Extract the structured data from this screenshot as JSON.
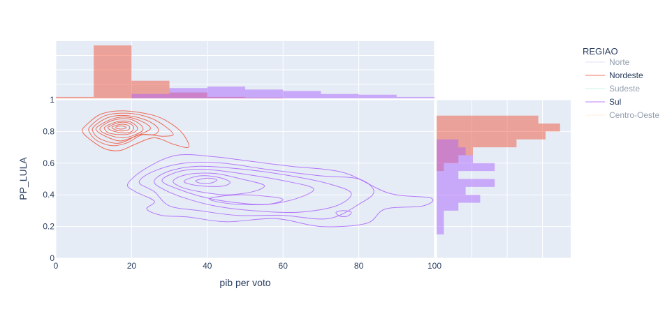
{
  "chart_data": {
    "type": "contour",
    "xlabel": "pib per voto",
    "ylabel": "PP_LULA",
    "xlim": [
      0,
      100
    ],
    "ylim": [
      0,
      1
    ],
    "x_ticks": [
      "0",
      "20",
      "40",
      "60",
      "80",
      "100"
    ],
    "y_ticks": [
      "0",
      "0.2",
      "0.4",
      "0.6",
      "0.8",
      "1"
    ],
    "grid": true,
    "legend_title": "REGIAO",
    "legend_position": "right",
    "legend": [
      {
        "name": "Norte",
        "color": "#636efa",
        "visible": false
      },
      {
        "name": "Nordeste",
        "color": "#EF553B",
        "visible": true
      },
      {
        "name": "Sudeste",
        "color": "#00cc96",
        "visible": false
      },
      {
        "name": "Sul",
        "color": "#ab63fa",
        "visible": true
      },
      {
        "name": "Centro-Oeste",
        "color": "#FFA15A",
        "visible": false
      }
    ],
    "colors": {
      "nordeste": "#EF553B",
      "sul": "#ab63fa",
      "plot_bg": "#e5ecf6",
      "text": "#2a3f5f"
    },
    "top_histogram": {
      "bin_width": 10,
      "series": [
        {
          "name": "Nordeste",
          "bins": [
            0,
            10,
            20,
            30,
            40,
            50
          ],
          "values": [
            1,
            36,
            12,
            4,
            1,
            0.5
          ]
        },
        {
          "name": "Sul",
          "bins": [
            20,
            30,
            40,
            50,
            60,
            70,
            80,
            90
          ],
          "values": [
            3,
            7,
            8,
            6,
            5,
            3,
            2.5,
            1
          ]
        }
      ]
    },
    "right_histogram": {
      "bin_width": 0.05,
      "series": [
        {
          "name": "Nordeste",
          "bins": [
            0.55,
            0.6,
            0.65,
            0.7,
            0.75,
            0.8,
            0.85
          ],
          "values": [
            1,
            3,
            5,
            11,
            15,
            17,
            14
          ]
        },
        {
          "name": "Sul",
          "bins": [
            0.15,
            0.2,
            0.25,
            0.3,
            0.35,
            0.4,
            0.45,
            0.5,
            0.55,
            0.6,
            0.65,
            0.7
          ],
          "values": [
            1,
            1,
            1,
            3,
            6,
            4,
            8,
            3,
            8,
            5,
            4,
            3
          ]
        }
      ]
    },
    "contours": {
      "Nordeste": [
        [
          [
            8,
            0.84
          ],
          [
            12,
            0.91
          ],
          [
            18,
            0.93
          ],
          [
            26,
            0.9
          ],
          [
            31,
            0.84
          ],
          [
            34,
            0.77
          ],
          [
            35,
            0.7
          ],
          [
            31,
            0.72
          ],
          [
            26,
            0.76
          ],
          [
            21,
            0.72
          ],
          [
            17,
            0.68
          ],
          [
            13,
            0.69
          ],
          [
            9,
            0.75
          ],
          [
            7,
            0.8
          ]
        ],
        [
          [
            9,
            0.83
          ],
          [
            13,
            0.9
          ],
          [
            19,
            0.915
          ],
          [
            25,
            0.885
          ],
          [
            29,
            0.83
          ],
          [
            31,
            0.78
          ],
          [
            28,
            0.77
          ],
          [
            23,
            0.78
          ],
          [
            19,
            0.73
          ],
          [
            15,
            0.71
          ],
          [
            11,
            0.74
          ],
          [
            9,
            0.79
          ]
        ],
        [
          [
            10,
            0.83
          ],
          [
            14,
            0.89
          ],
          [
            19,
            0.9
          ],
          [
            24,
            0.87
          ],
          [
            27,
            0.82
          ],
          [
            26,
            0.78
          ],
          [
            22,
            0.78
          ],
          [
            19,
            0.745
          ],
          [
            16,
            0.725
          ],
          [
            12,
            0.75
          ],
          [
            10,
            0.79
          ]
        ],
        [
          [
            11,
            0.83
          ],
          [
            15,
            0.88
          ],
          [
            19,
            0.89
          ],
          [
            23,
            0.86
          ],
          [
            25,
            0.82
          ],
          [
            23,
            0.79
          ],
          [
            20,
            0.76
          ],
          [
            17,
            0.74
          ],
          [
            14,
            0.76
          ],
          [
            11,
            0.8
          ]
        ],
        [
          [
            12,
            0.83
          ],
          [
            15,
            0.87
          ],
          [
            19,
            0.88
          ],
          [
            22,
            0.85
          ],
          [
            23,
            0.81
          ],
          [
            21,
            0.78
          ],
          [
            18,
            0.76
          ],
          [
            15,
            0.77
          ],
          [
            12,
            0.8
          ]
        ],
        [
          [
            13,
            0.83
          ],
          [
            16,
            0.86
          ],
          [
            19,
            0.865
          ],
          [
            21,
            0.84
          ],
          [
            21.5,
            0.81
          ],
          [
            19.5,
            0.785
          ],
          [
            17,
            0.78
          ],
          [
            14,
            0.79
          ],
          [
            13,
            0.81
          ]
        ],
        [
          [
            14,
            0.83
          ],
          [
            16.5,
            0.855
          ],
          [
            19,
            0.855
          ],
          [
            20.5,
            0.83
          ],
          [
            20,
            0.8
          ],
          [
            18,
            0.79
          ],
          [
            15.5,
            0.8
          ],
          [
            14,
            0.815
          ]
        ],
        [
          [
            15,
            0.83
          ],
          [
            17,
            0.845
          ],
          [
            19,
            0.84
          ],
          [
            19.5,
            0.82
          ],
          [
            18.5,
            0.805
          ],
          [
            16.5,
            0.805
          ],
          [
            15,
            0.82
          ]
        ],
        [
          [
            16,
            0.83
          ],
          [
            17.5,
            0.835
          ],
          [
            18.5,
            0.825
          ],
          [
            17.5,
            0.815
          ],
          [
            16,
            0.82
          ]
        ]
      ],
      "Sul": [
        [
          [
            19,
            0.47
          ],
          [
            24,
            0.57
          ],
          [
            32,
            0.65
          ],
          [
            42,
            0.64
          ],
          [
            52,
            0.61
          ],
          [
            62,
            0.58
          ],
          [
            76,
            0.54
          ],
          [
            88,
            0.41
          ],
          [
            99,
            0.38
          ],
          [
            97,
            0.33
          ],
          [
            87,
            0.31
          ],
          [
            82,
            0.22
          ],
          [
            70,
            0.2
          ],
          [
            58,
            0.25
          ],
          [
            45,
            0.23
          ],
          [
            35,
            0.26
          ],
          [
            28,
            0.27
          ],
          [
            24,
            0.31
          ],
          [
            26,
            0.36
          ],
          [
            21,
            0.42
          ]
        ],
        [
          [
            22,
            0.48
          ],
          [
            26,
            0.55
          ],
          [
            34,
            0.6
          ],
          [
            44,
            0.6
          ],
          [
            56,
            0.56
          ],
          [
            70,
            0.52
          ],
          [
            80,
            0.5
          ],
          [
            84,
            0.42
          ],
          [
            80,
            0.34
          ],
          [
            72,
            0.25
          ],
          [
            60,
            0.27
          ],
          [
            48,
            0.27
          ],
          [
            38,
            0.3
          ],
          [
            30,
            0.33
          ],
          [
            26,
            0.42
          ]
        ],
        [
          [
            26,
            0.49
          ],
          [
            30,
            0.55
          ],
          [
            38,
            0.58
          ],
          [
            50,
            0.56
          ],
          [
            62,
            0.52
          ],
          [
            72,
            0.47
          ],
          [
            78,
            0.41
          ],
          [
            74,
            0.33
          ],
          [
            64,
            0.29
          ],
          [
            52,
            0.3
          ],
          [
            42,
            0.33
          ],
          [
            34,
            0.38
          ],
          [
            28,
            0.44
          ]
        ],
        [
          [
            28,
            0.49
          ],
          [
            33,
            0.55
          ],
          [
            40,
            0.56
          ],
          [
            50,
            0.53
          ],
          [
            60,
            0.49
          ],
          [
            68,
            0.44
          ],
          [
            64,
            0.38
          ],
          [
            56,
            0.34
          ],
          [
            48,
            0.35
          ],
          [
            40,
            0.38
          ],
          [
            33,
            0.43
          ]
        ],
        [
          [
            31,
            0.49
          ],
          [
            35,
            0.53
          ],
          [
            42,
            0.535
          ],
          [
            49,
            0.5
          ],
          [
            55,
            0.46
          ],
          [
            52,
            0.42
          ],
          [
            45,
            0.4
          ],
          [
            38,
            0.42
          ],
          [
            33,
            0.45
          ]
        ],
        [
          [
            34,
            0.49
          ],
          [
            38,
            0.52
          ],
          [
            43,
            0.51
          ],
          [
            46,
            0.48
          ],
          [
            44,
            0.455
          ],
          [
            39,
            0.455
          ],
          [
            35,
            0.47
          ]
        ],
        [
          [
            37,
            0.49
          ],
          [
            40,
            0.505
          ],
          [
            42.5,
            0.495
          ],
          [
            41,
            0.475
          ],
          [
            38,
            0.475
          ]
        ],
        [
          [
            41,
            0.38
          ],
          [
            48,
            0.4
          ],
          [
            56,
            0.39
          ],
          [
            60,
            0.37
          ],
          [
            56,
            0.34
          ],
          [
            48,
            0.34
          ],
          [
            42,
            0.36
          ]
        ],
        [
          [
            74,
            0.29
          ],
          [
            76,
            0.3
          ],
          [
            78,
            0.29
          ],
          [
            77,
            0.265
          ],
          [
            75,
            0.265
          ]
        ]
      ]
    }
  }
}
